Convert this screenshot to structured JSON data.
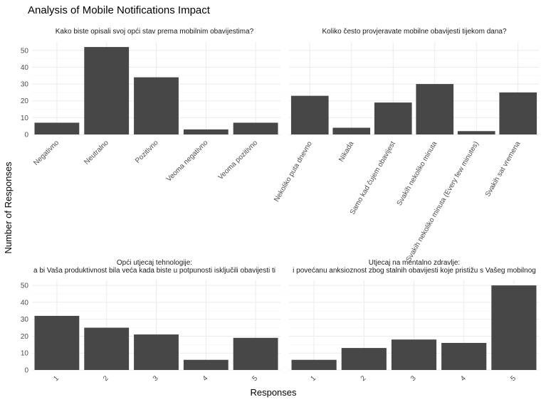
{
  "title": "Analysis of Mobile Notifications Impact",
  "xlabel": "Responses",
  "ylabel": "Number of Responses",
  "bar_color": "#474747",
  "chart_data": [
    {
      "type": "bar",
      "title": "Kako biste opisali svoj opći stav prema mobilnim obavijestima?",
      "title_line2": "",
      "categories": [
        "Negativno",
        "Neutralno",
        "Pozitivno",
        "Veoma negativno",
        "Veoma pozitivno"
      ],
      "values": [
        7,
        52,
        34,
        3,
        7
      ],
      "ylim": [
        0,
        55
      ],
      "yticks": [
        0,
        10,
        20,
        30,
        40,
        50
      ]
    },
    {
      "type": "bar",
      "title": "Koliko često provjeravate mobilne obavijesti tijekom dana?",
      "title_line2": "",
      "categories": [
        "Nekoliko puta dnevno",
        "Nikada",
        "Samo kad čujem obavijest",
        "Svakih nekoliko minuta",
        "Svakih nekoliko minuta (Every few minutes)",
        "Svakih sat vremena"
      ],
      "values": [
        23,
        4,
        19,
        30,
        2,
        25
      ],
      "ylim": [
        0,
        55
      ],
      "yticks": [
        0,
        10,
        20,
        30,
        40,
        50
      ]
    },
    {
      "type": "bar",
      "title": "Opći utjecaj tehnologije:",
      "title_line2": "a bi Vaša produktivnost bila veća kada biste u potpunosti isključili obavijesti ti",
      "categories": [
        "1",
        "2",
        "3",
        "4",
        "5"
      ],
      "values": [
        32,
        25,
        21,
        6,
        19
      ],
      "ylim": [
        0,
        53
      ],
      "yticks": [
        0,
        10,
        20,
        30,
        40,
        50
      ]
    },
    {
      "type": "bar",
      "title": "Utjecaj na mentalno zdravlje:",
      "title_line2": "i povećanu anksioznost zbog stalnih obavijesti koje pristižu s Vašeg mobilnog",
      "categories": [
        "1",
        "2",
        "3",
        "4",
        "5"
      ],
      "values": [
        6,
        13,
        18,
        16,
        50
      ],
      "ylim": [
        0,
        53
      ],
      "yticks": [
        0,
        10,
        20,
        30,
        40,
        50
      ]
    }
  ]
}
